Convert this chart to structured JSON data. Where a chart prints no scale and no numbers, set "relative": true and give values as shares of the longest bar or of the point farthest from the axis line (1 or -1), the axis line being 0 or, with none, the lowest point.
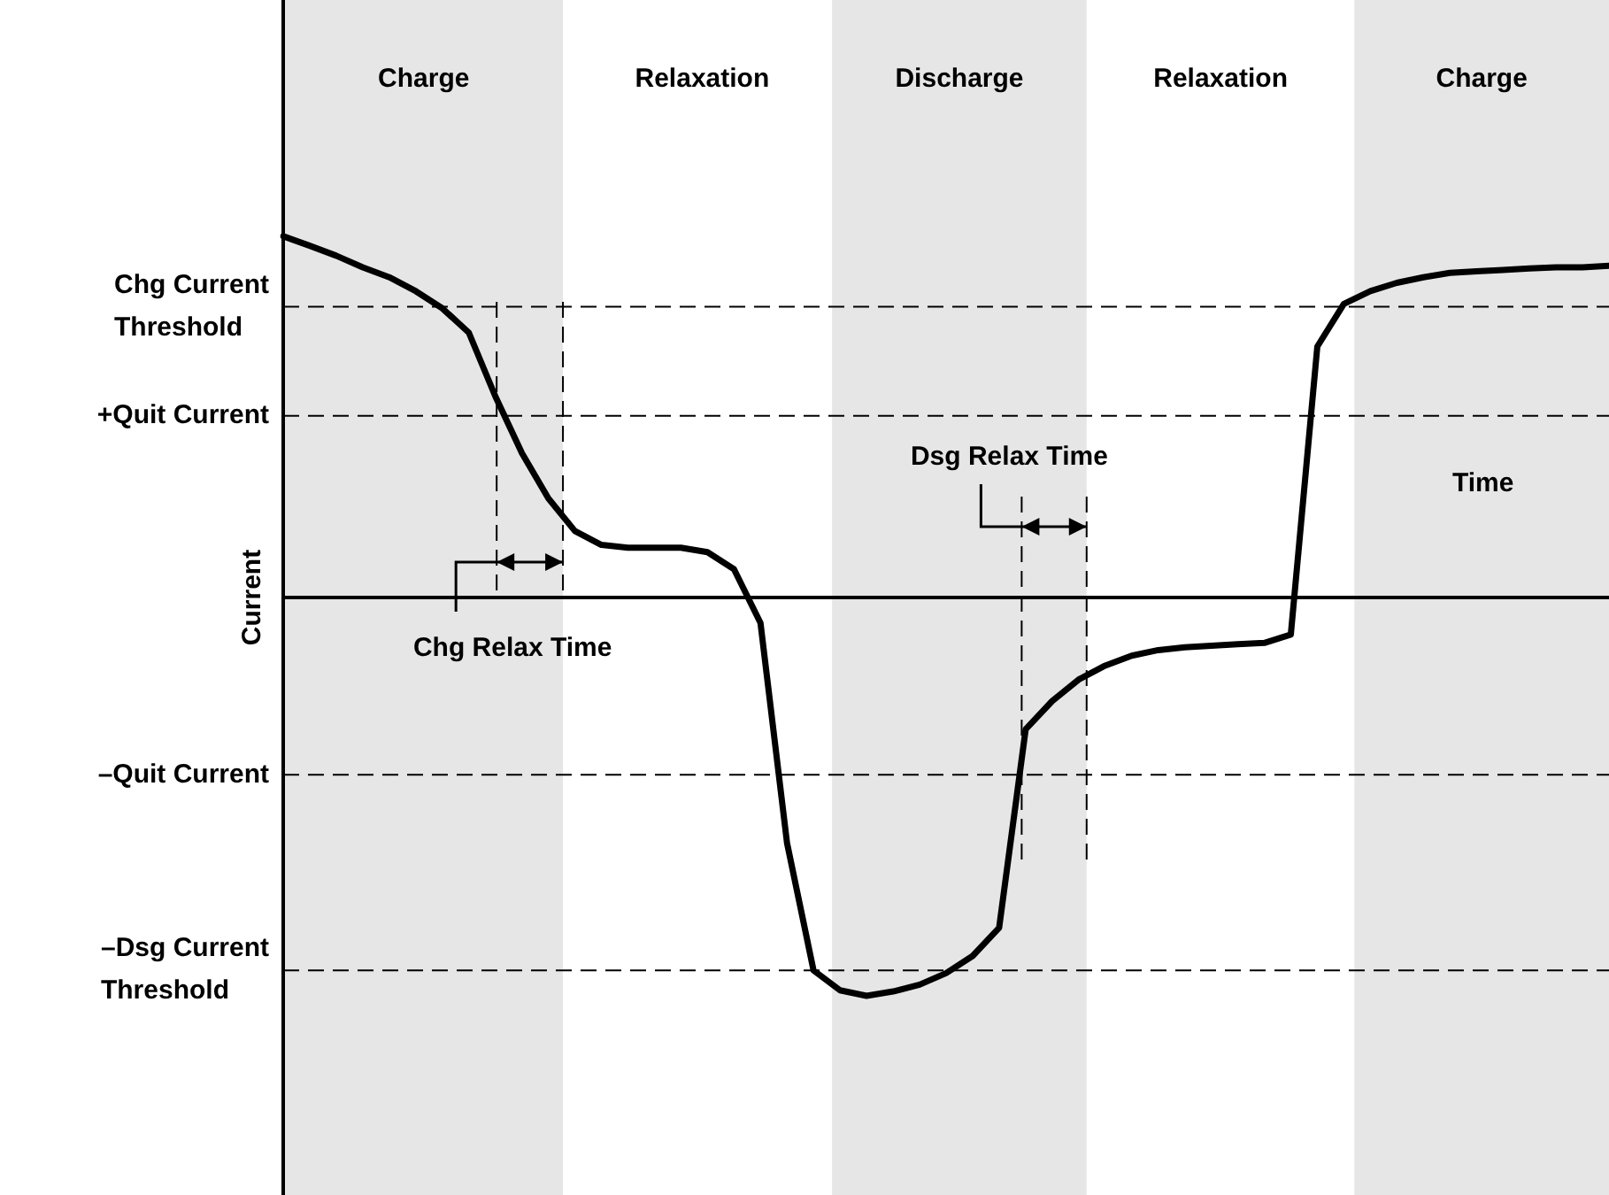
{
  "chart_data": {
    "type": "line",
    "relative": true,
    "xlabel": "Time",
    "ylabel": "Current",
    "legend": false,
    "marker": "none",
    "line_style": "solid",
    "categories": [
      null,
      null,
      null,
      null,
      null,
      null,
      null,
      null,
      null,
      null,
      null,
      null,
      null,
      null,
      null,
      null,
      null,
      null,
      null,
      null,
      null,
      null,
      null,
      null,
      null,
      null,
      null,
      null,
      null,
      null,
      null,
      null,
      null,
      null,
      null,
      null,
      null,
      null,
      null,
      null,
      null,
      null,
      null,
      null,
      null,
      null,
      null,
      null,
      null,
      null,
      null
    ],
    "series": [
      {
        "color": "#000000",
        "values": [
          0.907,
          0.883,
          0.858,
          0.829,
          0.804,
          0.769,
          0.726,
          0.665,
          0.505,
          0.363,
          0.249,
          0.167,
          0.132,
          0.125,
          0.125,
          0.125,
          0.114,
          0.071,
          -0.064,
          -0.616,
          -0.936,
          -0.986,
          -1,
          -0.989,
          -0.972,
          -0.943,
          -0.9,
          -0.829,
          -0.331,
          -0.26,
          -0.206,
          -0.171,
          -0.146,
          -0.132,
          -0.125,
          -0.121,
          -0.117,
          -0.114,
          -0.093,
          0.63,
          0.737,
          0.769,
          0.79,
          0.804,
          0.815,
          0.819,
          0.822,
          0.826,
          0.829,
          0.829,
          0.833
        ]
      }
    ],
    "ref_lines": [
      {
        "axis": "y",
        "value": 0.73,
        "label": "Chg Current Threshold",
        "line_style": "dashed",
        "color": "#000000"
      },
      {
        "axis": "y",
        "value": 0.456,
        "label": "+Quit Current",
        "line_style": "dashed",
        "color": "#000000"
      },
      {
        "axis": "y",
        "value": -0.445,
        "label": "–Quit Current",
        "line_style": "dashed",
        "color": "#000000"
      },
      {
        "axis": "y",
        "value": -0.936,
        "label": "–Dsg Current Threshold",
        "line_style": "dashed",
        "color": "#000000"
      }
    ],
    "annotations": [
      "Charge",
      "Relaxation",
      "Discharge",
      "Relaxation",
      "Charge",
      "Chg Relax Time",
      "Dsg Relax Time"
    ]
  }
}
